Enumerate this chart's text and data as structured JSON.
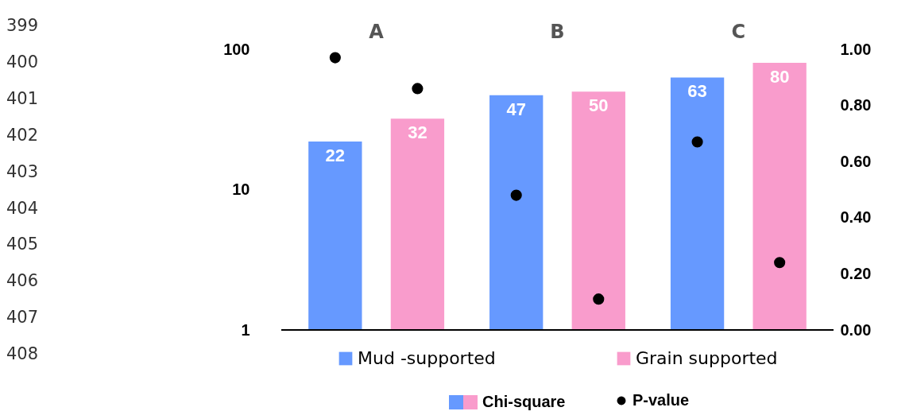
{
  "chart_data": {
    "type": "bar",
    "categories": [
      "A",
      "B",
      "C"
    ],
    "series": [
      {
        "name": "Mud -supported",
        "color": "#6699ff",
        "values": [
          22,
          47,
          63
        ],
        "value_labels": [
          "22",
          "47",
          "63"
        ]
      },
      {
        "name": "Grain supported",
        "color": "#f99ccc",
        "values": [
          32,
          50,
          80
        ],
        "value_labels": [
          "32",
          "50",
          "80"
        ]
      },
      {
        "name": "P-value",
        "type": "scatter",
        "axis": "y2",
        "color": "#000000",
        "marker": "circle",
        "values": [
          0.97,
          0.48,
          0.67
        ]
      },
      {
        "type": "scatter",
        "axis": "y2",
        "color": "#000000",
        "marker": "circle",
        "values": [
          0.86,
          0.11,
          0.24
        ]
      }
    ],
    "log": true,
    "ylim": [
      1,
      100
    ],
    "yticks": [
      1,
      10,
      100
    ],
    "y2lim": [
      0,
      1
    ],
    "y2ticks": [
      {
        "value": 0,
        "label": "0.00"
      },
      {
        "value": 0.2,
        "label": "0.20"
      },
      {
        "value": 0.4,
        "label": "0.40"
      },
      {
        "value": 0.6,
        "label": "0.60"
      },
      {
        "value": 0.8,
        "label": "0.80"
      },
      {
        "value": 1,
        "label": "1.00"
      }
    ],
    "legend": "bottom",
    "grid": false,
    "annotations": [
      "Chi-square",
      "399",
      "400",
      "401",
      "402",
      "403",
      "404",
      "405",
      "406",
      "407",
      "408"
    ]
  }
}
